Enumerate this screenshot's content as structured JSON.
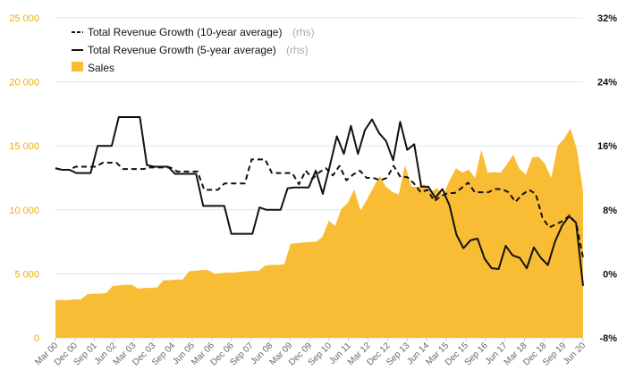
{
  "chart_data": {
    "type": "area",
    "title": "",
    "grid": true,
    "legend_position": "top-left",
    "colors": {
      "sales": "#f9bd35",
      "sales_axis": "#f2ad00",
      "lines": "#111111",
      "grid": "#e6e6e6"
    },
    "y_left": {
      "range": [
        0,
        25000
      ],
      "ticks": [
        0,
        5000,
        10000,
        15000,
        20000,
        25000
      ],
      "tick_labels": [
        "0",
        "5 000",
        "10 000",
        "15 000",
        "20 000",
        "25 000"
      ]
    },
    "y_right": {
      "range": [
        -8,
        32
      ],
      "ticks": [
        -8,
        0,
        8,
        16,
        24,
        32
      ],
      "tick_labels": [
        "-8%",
        "0%",
        "8%",
        "16%",
        "24%",
        "32%"
      ]
    },
    "x_tick_labels": [
      "Mar 00",
      "Dec 00",
      "Sep 01",
      "Jun 02",
      "Mar 03",
      "Dec 03",
      "Sep 04",
      "Jun 05",
      "Mar 06",
      "Dec 06",
      "Sep 07",
      "Jun 08",
      "Mar 09",
      "Dec 09",
      "Sep 10",
      "Jun 11",
      "Mar 12",
      "Dec 12",
      "Sep 13",
      "Jun 14",
      "Mar 15",
      "Dec 15",
      "Sep 16",
      "Jun 17",
      "Mar 18",
      "Dec 18",
      "Sep 19",
      "Jun 20"
    ],
    "legend": [
      {
        "label": "Total Revenue Growth (10-year average)",
        "unit": "(rhs)",
        "style": "dashed"
      },
      {
        "label": "Total Revenue Growth (5-year average)",
        "unit": "(rhs)",
        "style": "solid"
      },
      {
        "label": "Sales",
        "unit": "",
        "style": "area"
      }
    ],
    "series": [
      {
        "name": "Sales",
        "axis": "left",
        "values": [
          2950,
          2950,
          2950,
          3000,
          3000,
          3400,
          3450,
          3450,
          3500,
          4050,
          4100,
          4150,
          4150,
          3850,
          3900,
          3900,
          3950,
          4500,
          4500,
          4550,
          4550,
          5200,
          5250,
          5300,
          5300,
          5000,
          5050,
          5100,
          5100,
          5150,
          5200,
          5250,
          5250,
          5650,
          5700,
          5700,
          5750,
          7350,
          7400,
          7450,
          7500,
          7500,
          7900,
          9150,
          8750,
          10100,
          10550,
          11600,
          9950,
          10800,
          11750,
          12650,
          11800,
          11400,
          11200,
          13500,
          11800,
          11800,
          12000,
          11400,
          11700,
          11200,
          12300,
          13250,
          12900,
          13150,
          12500,
          14700,
          12900,
          12950,
          12900,
          13550,
          14300,
          13200,
          12750,
          14100,
          14150,
          13600,
          12500,
          15000,
          15550,
          16350,
          14800,
          11450
        ]
      },
      {
        "name": "Total Revenue Growth (10-year average)",
        "axis": "right",
        "values": [
          13.2,
          13.0,
          13.0,
          13.4,
          13.4,
          13.4,
          13.4,
          13.9,
          13.9,
          13.9,
          13.1,
          13.1,
          13.1,
          13.1,
          13.3,
          13.3,
          13.3,
          13.3,
          12.8,
          12.8,
          12.8,
          12.8,
          10.5,
          10.5,
          10.5,
          11.3,
          11.3,
          11.3,
          11.3,
          14.3,
          14.3,
          14.3,
          12.6,
          12.6,
          12.6,
          12.6,
          11.2,
          12.9,
          11.9,
          12.7,
          13.2,
          12.3,
          13.5,
          11.7,
          12.4,
          12.9,
          12.0,
          12.0,
          11.7,
          12.0,
          13.5,
          12.1,
          12.1,
          11.3,
          10.2,
          10.5,
          9.1,
          9.7,
          10.1,
          10.1,
          10.7,
          11.4,
          10.2,
          10.2,
          10.2,
          10.6,
          10.6,
          10.2,
          9.0,
          9.9,
          10.5,
          10.0,
          7.0,
          5.8,
          6.2,
          6.6,
          7.3,
          6.3,
          2.0
        ]
      },
      {
        "name": "Total Revenue Growth (5-year average)",
        "axis": "right",
        "values": [
          13.2,
          13.0,
          13.0,
          12.6,
          12.6,
          12.6,
          16.0,
          16.0,
          16.0,
          19.6,
          19.6,
          19.6,
          19.6,
          13.6,
          13.4,
          13.4,
          13.4,
          12.5,
          12.5,
          12.5,
          12.5,
          8.5,
          8.5,
          8.5,
          8.5,
          5.0,
          5.0,
          5.0,
          5.0,
          8.3,
          8.0,
          8.0,
          8.0,
          10.7,
          10.8,
          10.8,
          10.8,
          12.9,
          10.0,
          13.5,
          17.2,
          15.0,
          18.5,
          15.0,
          18.0,
          19.3,
          17.6,
          16.6,
          14.2,
          19.0,
          15.5,
          16.2,
          10.9,
          10.9,
          9.5,
          10.6,
          8.6,
          4.9,
          3.2,
          4.2,
          4.4,
          1.9,
          0.7,
          0.6,
          3.5,
          2.3,
          2.0,
          0.7,
          3.3,
          2.0,
          1.1,
          4.0,
          6.0,
          7.2,
          6.4,
          -1.5
        ]
      }
    ]
  }
}
